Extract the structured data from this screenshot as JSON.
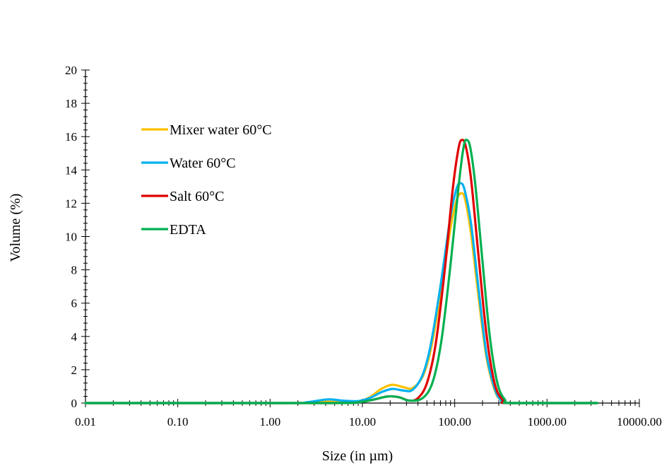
{
  "chart_data": {
    "type": "line",
    "title": "",
    "xlabel": "Size (in µm)",
    "ylabel": "Volume (%)",
    "xscale": "log",
    "xlim": [
      0.01,
      10000
    ],
    "ylim": [
      0,
      20
    ],
    "x_ticks": [
      0.01,
      0.1,
      1,
      10,
      100,
      1000,
      10000
    ],
    "x_tick_labels": [
      "0.01",
      "0.10",
      "1.00",
      "10.00",
      "100.00",
      "1000.00",
      "10000.00"
    ],
    "y_ticks": [
      0,
      2,
      4,
      6,
      8,
      10,
      12,
      14,
      16,
      18,
      20
    ],
    "y_tick_labels": [
      "0",
      "2",
      "4",
      "6",
      "8",
      "10",
      "12",
      "14",
      "16",
      "18",
      "20"
    ],
    "grid": false,
    "legend_position": "upper-left",
    "series": [
      {
        "name": "Mixer water 60°C",
        "color": "#FFC000",
        "points": [
          [
            0.01,
            0
          ],
          [
            1.5,
            0
          ],
          [
            2.5,
            0.02
          ],
          [
            4,
            0.08
          ],
          [
            6,
            0.06
          ],
          [
            9,
            0.1
          ],
          [
            12,
            0.35
          ],
          [
            16,
            0.85
          ],
          [
            21,
            1.1
          ],
          [
            28,
            0.95
          ],
          [
            35,
            0.9
          ],
          [
            45,
            1.6
          ],
          [
            55,
            3.2
          ],
          [
            70,
            6.5
          ],
          [
            90,
            10.5
          ],
          [
            105,
            12.2
          ],
          [
            118,
            12.6
          ],
          [
            130,
            12.2
          ],
          [
            150,
            10.2
          ],
          [
            180,
            6.5
          ],
          [
            220,
            2.8
          ],
          [
            270,
            0.8
          ],
          [
            320,
            0.15
          ],
          [
            400,
            0
          ],
          [
            3500,
            0
          ]
        ]
      },
      {
        "name": "Water 60°C",
        "color": "#00B0F0",
        "points": [
          [
            0.01,
            0
          ],
          [
            1.5,
            0
          ],
          [
            2.5,
            0.05
          ],
          [
            4.2,
            0.22
          ],
          [
            6,
            0.15
          ],
          [
            9,
            0.12
          ],
          [
            12,
            0.3
          ],
          [
            16,
            0.65
          ],
          [
            21,
            0.85
          ],
          [
            28,
            0.75
          ],
          [
            35,
            0.8
          ],
          [
            45,
            1.7
          ],
          [
            55,
            3.5
          ],
          [
            70,
            7.0
          ],
          [
            90,
            11.2
          ],
          [
            105,
            12.9
          ],
          [
            116,
            13.2
          ],
          [
            128,
            12.8
          ],
          [
            150,
            10.8
          ],
          [
            180,
            7.0
          ],
          [
            220,
            3.0
          ],
          [
            270,
            0.9
          ],
          [
            320,
            0.15
          ],
          [
            400,
            0
          ],
          [
            3500,
            0
          ]
        ]
      },
      {
        "name": "Salt 60°C",
        "color": "#E00000",
        "points": [
          [
            0.01,
            0
          ],
          [
            4,
            0
          ],
          [
            9,
            0.05
          ],
          [
            13,
            0.2
          ],
          [
            19,
            0.4
          ],
          [
            25,
            0.35
          ],
          [
            32,
            0.15
          ],
          [
            40,
            0.3
          ],
          [
            50,
            1.2
          ],
          [
            62,
            3.5
          ],
          [
            78,
            8.0
          ],
          [
            95,
            12.8
          ],
          [
            110,
            15.3
          ],
          [
            120,
            15.8
          ],
          [
            132,
            15.4
          ],
          [
            150,
            13.5
          ],
          [
            180,
            9.0
          ],
          [
            220,
            4.2
          ],
          [
            270,
            1.2
          ],
          [
            330,
            0.2
          ],
          [
            400,
            0
          ],
          [
            3500,
            0
          ]
        ]
      },
      {
        "name": "EDTA",
        "color": "#00B050",
        "points": [
          [
            0.01,
            0
          ],
          [
            4,
            0
          ],
          [
            9,
            0.05
          ],
          [
            13,
            0.2
          ],
          [
            19,
            0.4
          ],
          [
            25,
            0.35
          ],
          [
            32,
            0.15
          ],
          [
            45,
            0.3
          ],
          [
            58,
            1.3
          ],
          [
            72,
            3.8
          ],
          [
            90,
            8.3
          ],
          [
            110,
            13.0
          ],
          [
            125,
            15.4
          ],
          [
            135,
            15.8
          ],
          [
            148,
            15.3
          ],
          [
            168,
            13.0
          ],
          [
            200,
            8.5
          ],
          [
            240,
            4.0
          ],
          [
            290,
            1.2
          ],
          [
            350,
            0.2
          ],
          [
            420,
            0
          ],
          [
            3500,
            0
          ]
        ]
      }
    ]
  }
}
